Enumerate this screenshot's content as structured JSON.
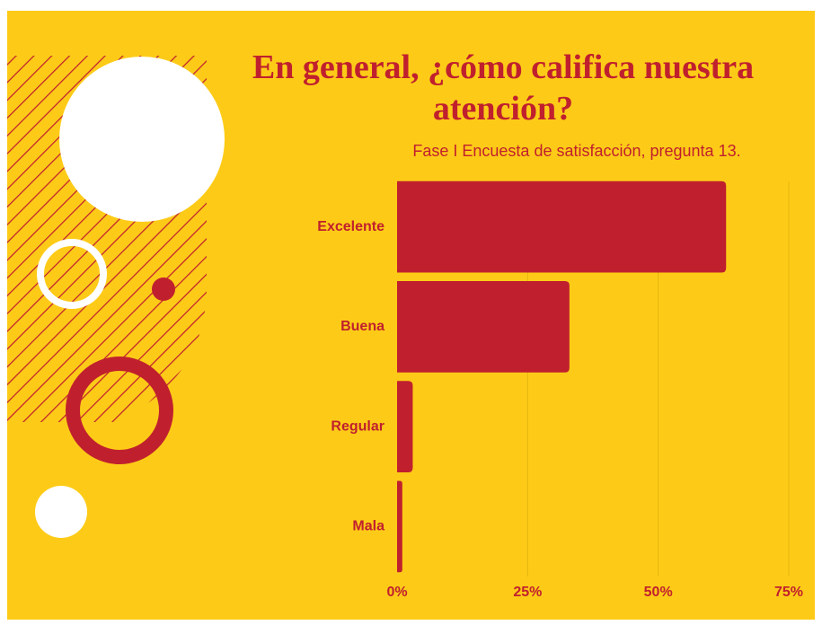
{
  "chart_data": {
    "type": "bar",
    "orientation": "horizontal",
    "title": "En general, ¿cómo califica nuestra atención?",
    "subtitle": "Fase I Encuesta de satisfacción, pregunta 13.",
    "categories": [
      "Excelente",
      "Buena",
      "Regular",
      "Mala"
    ],
    "values": [
      63,
      33,
      3,
      1
    ],
    "color": "#c0202e",
    "xlim": [
      0,
      75
    ],
    "xticks": [
      {
        "value": 0,
        "label": "0%"
      },
      {
        "value": 25,
        "label": "25%"
      },
      {
        "value": 50,
        "label": "50%"
      },
      {
        "value": 75,
        "label": "75%"
      }
    ],
    "grid": true
  }
}
